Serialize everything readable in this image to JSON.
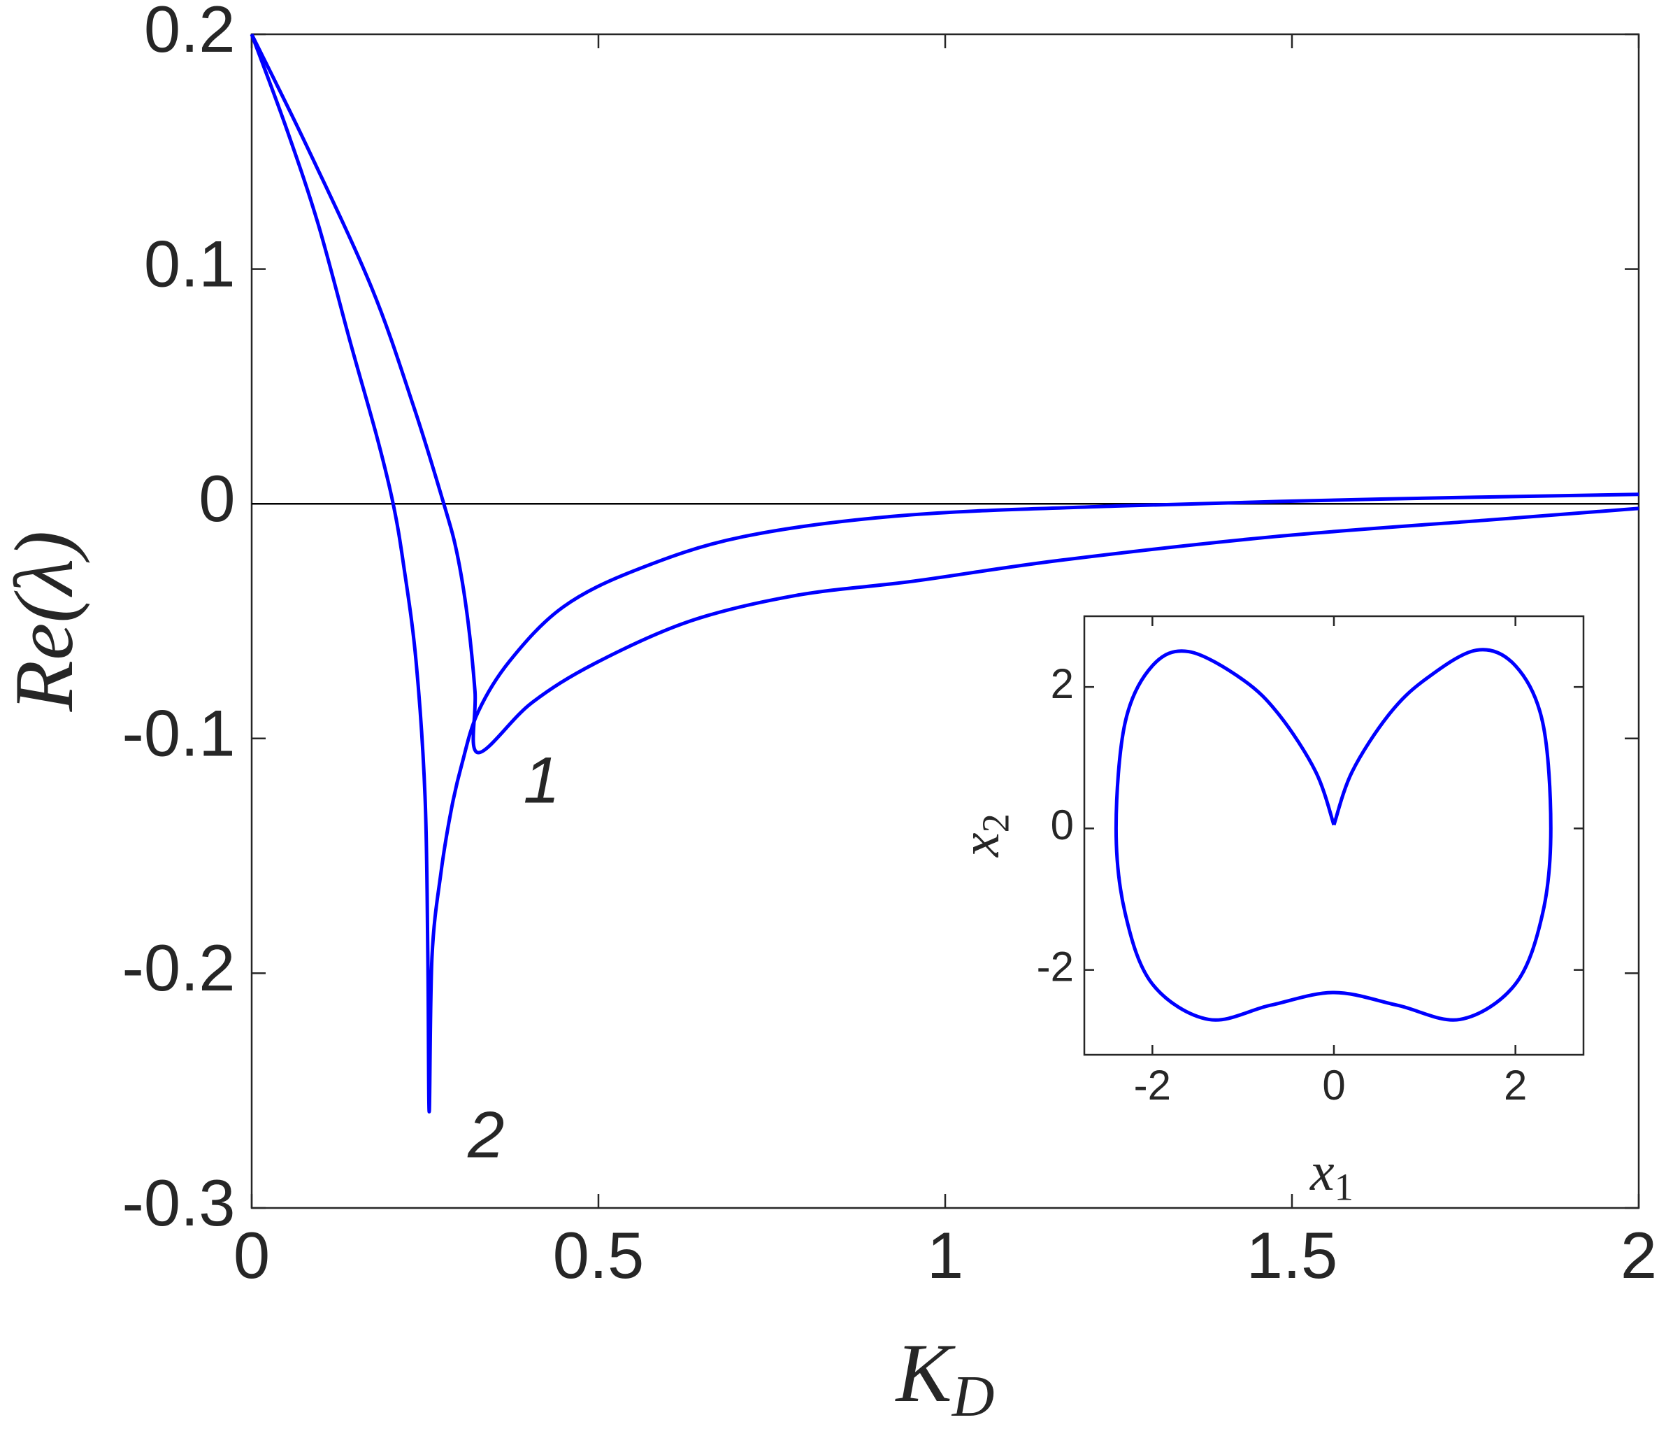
{
  "chart_data": [
    {
      "type": "line",
      "xlabel": "K",
      "xlabel_subscript": "D",
      "ylabel": "Re(λ)",
      "xlim": [
        0,
        2
      ],
      "ylim": [
        -0.3,
        0.2
      ],
      "xticks": [
        0,
        0.5,
        1,
        1.5,
        2
      ],
      "yticks": [
        -0.3,
        -0.2,
        -0.1,
        0,
        0.1,
        0.2
      ],
      "zero_line": true,
      "color": "#0000ff",
      "series": [
        {
          "color": "#0000ff",
          "x": [
            0,
            0.08,
            0.173,
            0.234,
            0.277,
            0.296,
            0.311,
            0.322,
            0.326,
            0.403,
            0.495,
            0.632,
            0.786,
            0.954,
            1.168,
            1.475,
            1.78,
            2
          ],
          "values": [
            0.2,
            0.152,
            0.092,
            0.041,
            0,
            -0.021,
            -0.048,
            -0.08,
            -0.106,
            -0.085,
            -0.068,
            -0.05,
            -0.039,
            -0.033,
            -0.024,
            -0.014,
            -0.007,
            -0.002
          ]
        },
        {
          "color": "#0000ff",
          "x": [
            0,
            0.05,
            0.096,
            0.142,
            0.181,
            0.204,
            0.219,
            0.237,
            0.25,
            0.254,
            0.256,
            0.26,
            0.273,
            0.288,
            0.303,
            0.326,
            0.372,
            0.449,
            0.556,
            0.709,
            0.939,
            1.245,
            1.628,
            2
          ],
          "values": [
            0.2,
            0.16,
            0.119,
            0.069,
            0.028,
            0,
            -0.026,
            -0.067,
            -0.125,
            -0.193,
            -0.259,
            -0.193,
            -0.157,
            -0.13,
            -0.111,
            -0.089,
            -0.067,
            -0.044,
            -0.028,
            -0.014,
            -0.005,
            -0.001,
            0.002,
            0.004
          ]
        }
      ],
      "annotations": [
        {
          "text": "1",
          "x": 0.418,
          "y": -0.12
        },
        {
          "text": "2",
          "x": 0.338,
          "y": -0.271
        }
      ]
    },
    {
      "type": "line",
      "xlabel": "x",
      "xlabel_subscript": "1",
      "ylabel": "x",
      "ylabel_subscript": "2",
      "xlim": [
        -2.75,
        2.75
      ],
      "ylim": [
        -3.2,
        3
      ],
      "xticks": [
        -2,
        0,
        2
      ],
      "yticks": [
        -2,
        0,
        2
      ],
      "color": "#0000ff",
      "series": [
        {
          "color": "#0000ff",
          "x": [
            0,
            0.2,
            0.6,
            1.0,
            1.57,
            2.0,
            2.3,
            2.39,
            2.3,
            2.0,
            1.39,
            0.7,
            0,
            -0.7,
            -1.38,
            -2.0,
            -2.3,
            -2.4,
            -2.3,
            -2.0,
            -1.6,
            -1.0,
            -0.6,
            -0.2,
            0
          ],
          "values": [
            0.05,
            0.8,
            1.6,
            2.1,
            2.52,
            2.3,
            1.5,
            0,
            -1.2,
            -2.2,
            -2.7,
            -2.5,
            -2.32,
            -2.5,
            -2.7,
            -2.2,
            -1.2,
            0,
            1.5,
            2.3,
            2.5,
            2.1,
            1.6,
            0.8,
            0.05
          ]
        }
      ]
    }
  ]
}
